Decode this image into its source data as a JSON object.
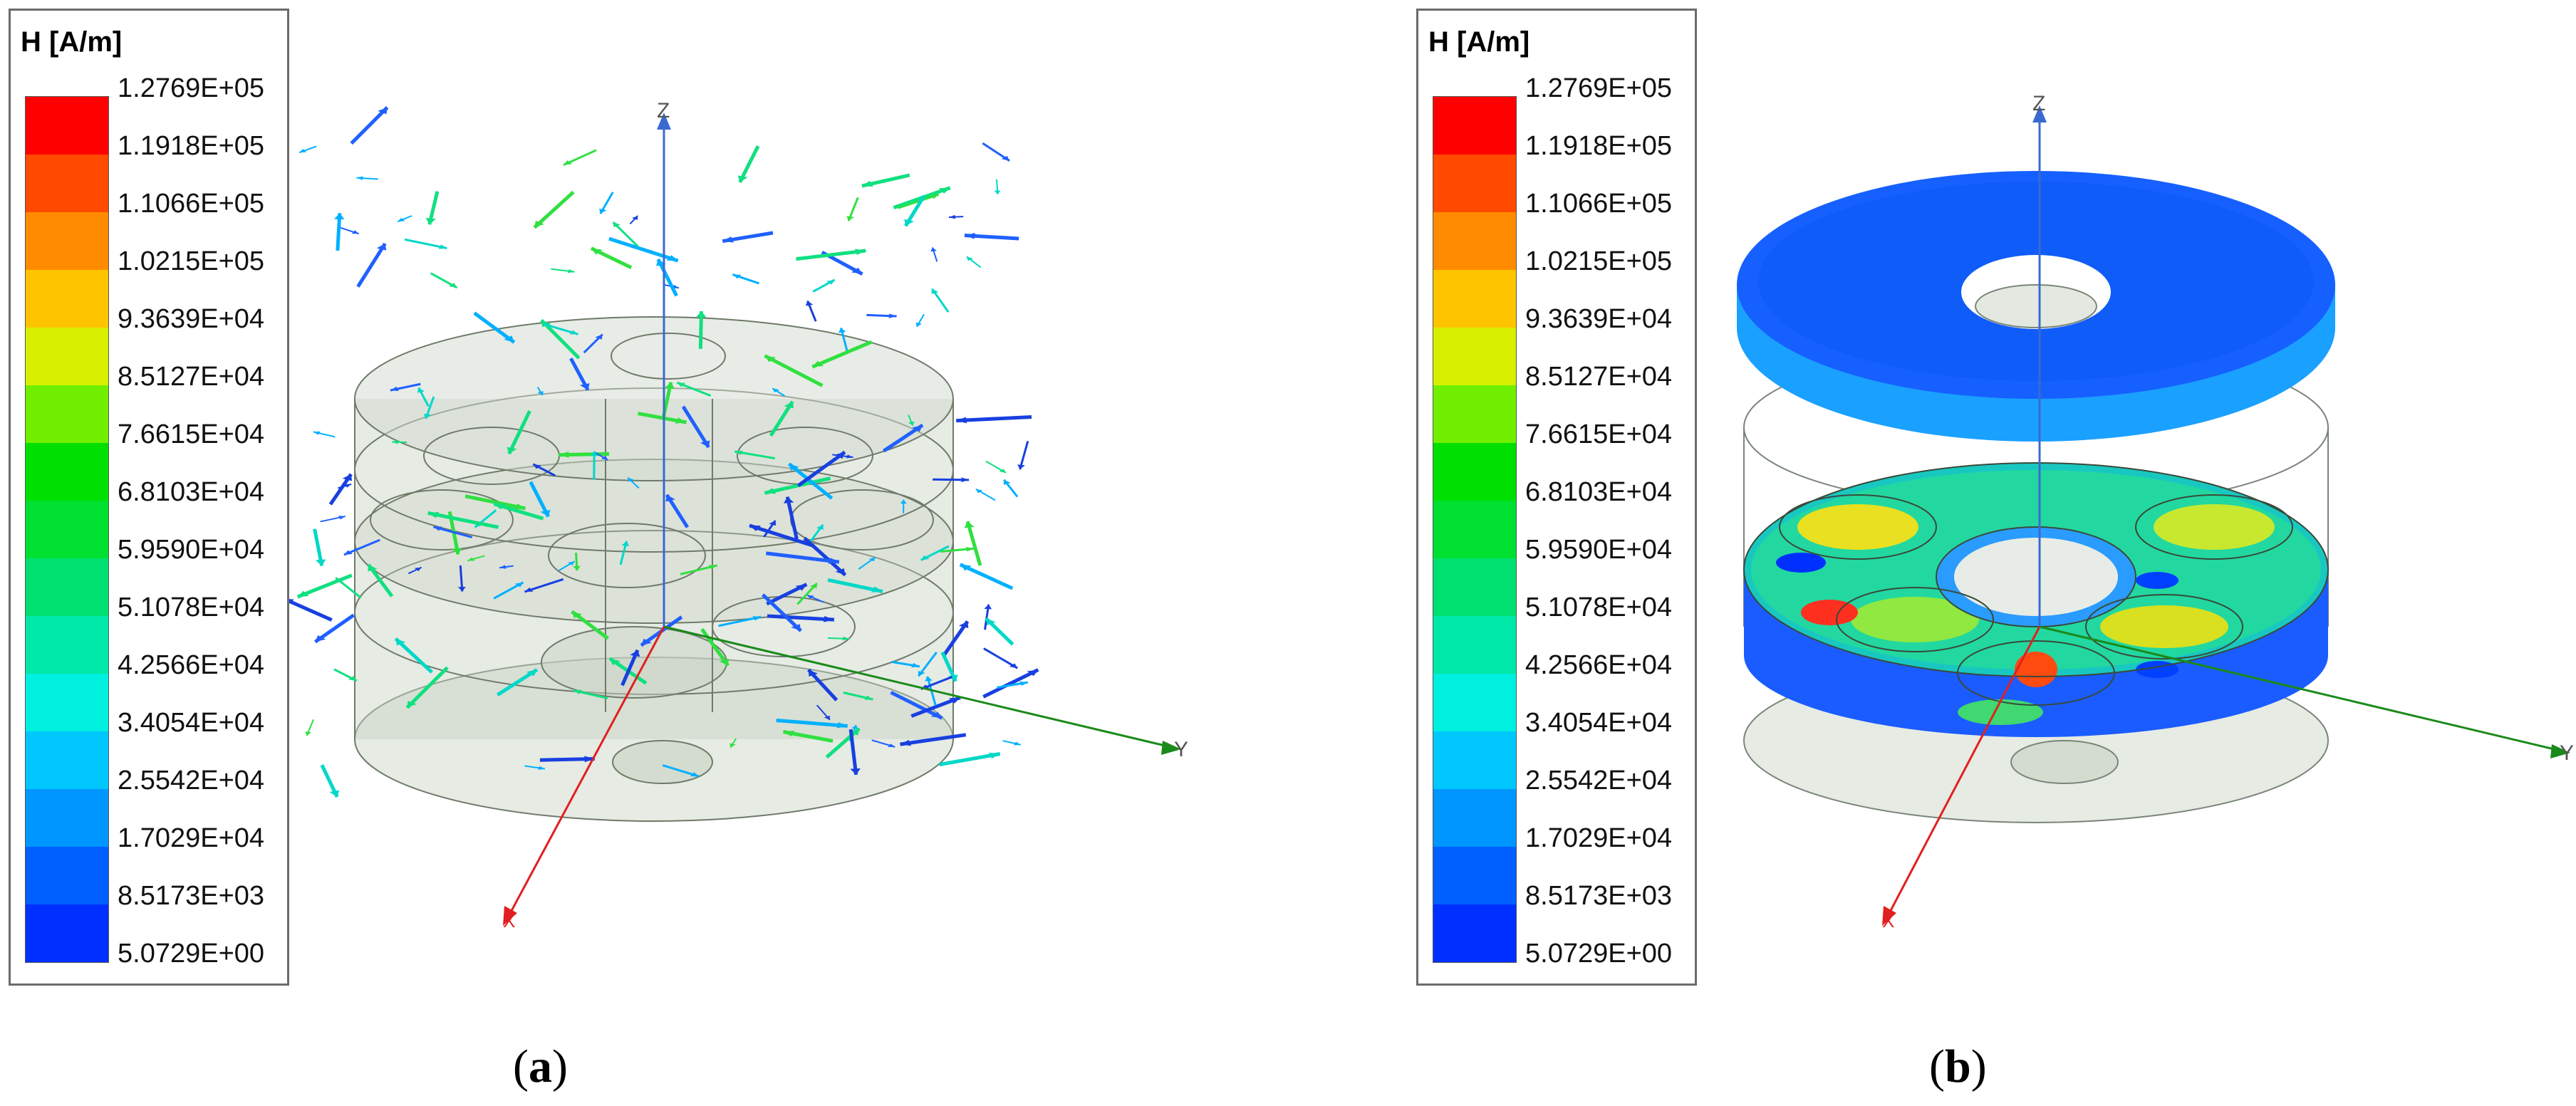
{
  "figure": {
    "legend": {
      "title": "H [A/m]",
      "levels": [
        "1.2769E+05",
        "1.1918E+05",
        "1.1066E+05",
        "1.0215E+05",
        "9.3639E+04",
        "8.5127E+04",
        "7.6615E+04",
        "6.8103E+04",
        "5.9590E+04",
        "5.1078E+04",
        "4.2566E+04",
        "3.4054E+04",
        "2.5542E+04",
        "1.7029E+04",
        "8.5173E+03",
        "5.0729E+00"
      ],
      "colors": [
        "#ff0000",
        "#ff4a00",
        "#ff8c00",
        "#ffc400",
        "#d8f000",
        "#70f000",
        "#00e000",
        "#00e030",
        "#00e070",
        "#00e8a8",
        "#00f0e0",
        "#00c8ff",
        "#0096ff",
        "#0060ff",
        "#0030ff",
        "#0000ff"
      ]
    },
    "axes": {
      "x": "X",
      "y": "Y",
      "z": "Z"
    },
    "panels": [
      {
        "id": "a",
        "caption_open": "(",
        "caption_letter": "a",
        "caption_close": ")"
      },
      {
        "id": "b",
        "caption_open": "(",
        "caption_letter": "b",
        "caption_close": ")"
      }
    ]
  }
}
